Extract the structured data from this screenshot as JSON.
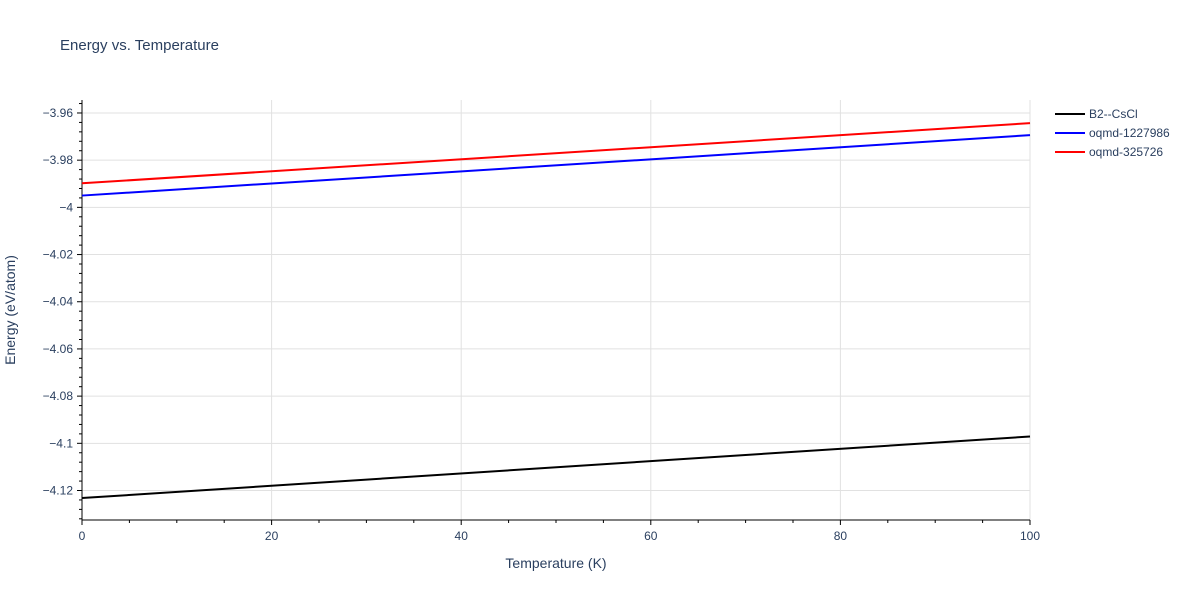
{
  "chart_data": {
    "type": "line",
    "title": "Energy vs. Temperature",
    "xlabel": "Temperature (K)",
    "ylabel": "Energy (eV/atom)",
    "xlim": [
      0,
      100
    ],
    "ylim": [
      -4.1325,
      -3.9545
    ],
    "x_ticks": [
      0,
      20,
      40,
      60,
      80,
      100
    ],
    "x_tick_labels": [
      "0",
      "20",
      "40",
      "60",
      "80",
      "100"
    ],
    "y_ticks": [
      -4.12,
      -4.1,
      -4.08,
      -4.06,
      -4.04,
      -4.02,
      -4.0,
      -3.98,
      -3.96
    ],
    "y_tick_labels": [
      "−4.12",
      "−4.1",
      "−4.08",
      "−4.06",
      "−4.04",
      "−4.02",
      "−4",
      "−3.98",
      "−3.96"
    ],
    "grid": true,
    "legend_position": "top-right",
    "series": [
      {
        "name": "B2--CsCl",
        "color": "#000000",
        "x": [
          0,
          100
        ],
        "y": [
          -4.1232,
          -4.0971
        ]
      },
      {
        "name": "oqmd-1227986",
        "color": "#0000ff",
        "x": [
          0,
          100
        ],
        "y": [
          -3.995,
          -3.9694
        ]
      },
      {
        "name": "oqmd-325726",
        "color": "#ff0000",
        "x": [
          0,
          100
        ],
        "y": [
          -3.9898,
          -3.9643
        ]
      }
    ]
  }
}
